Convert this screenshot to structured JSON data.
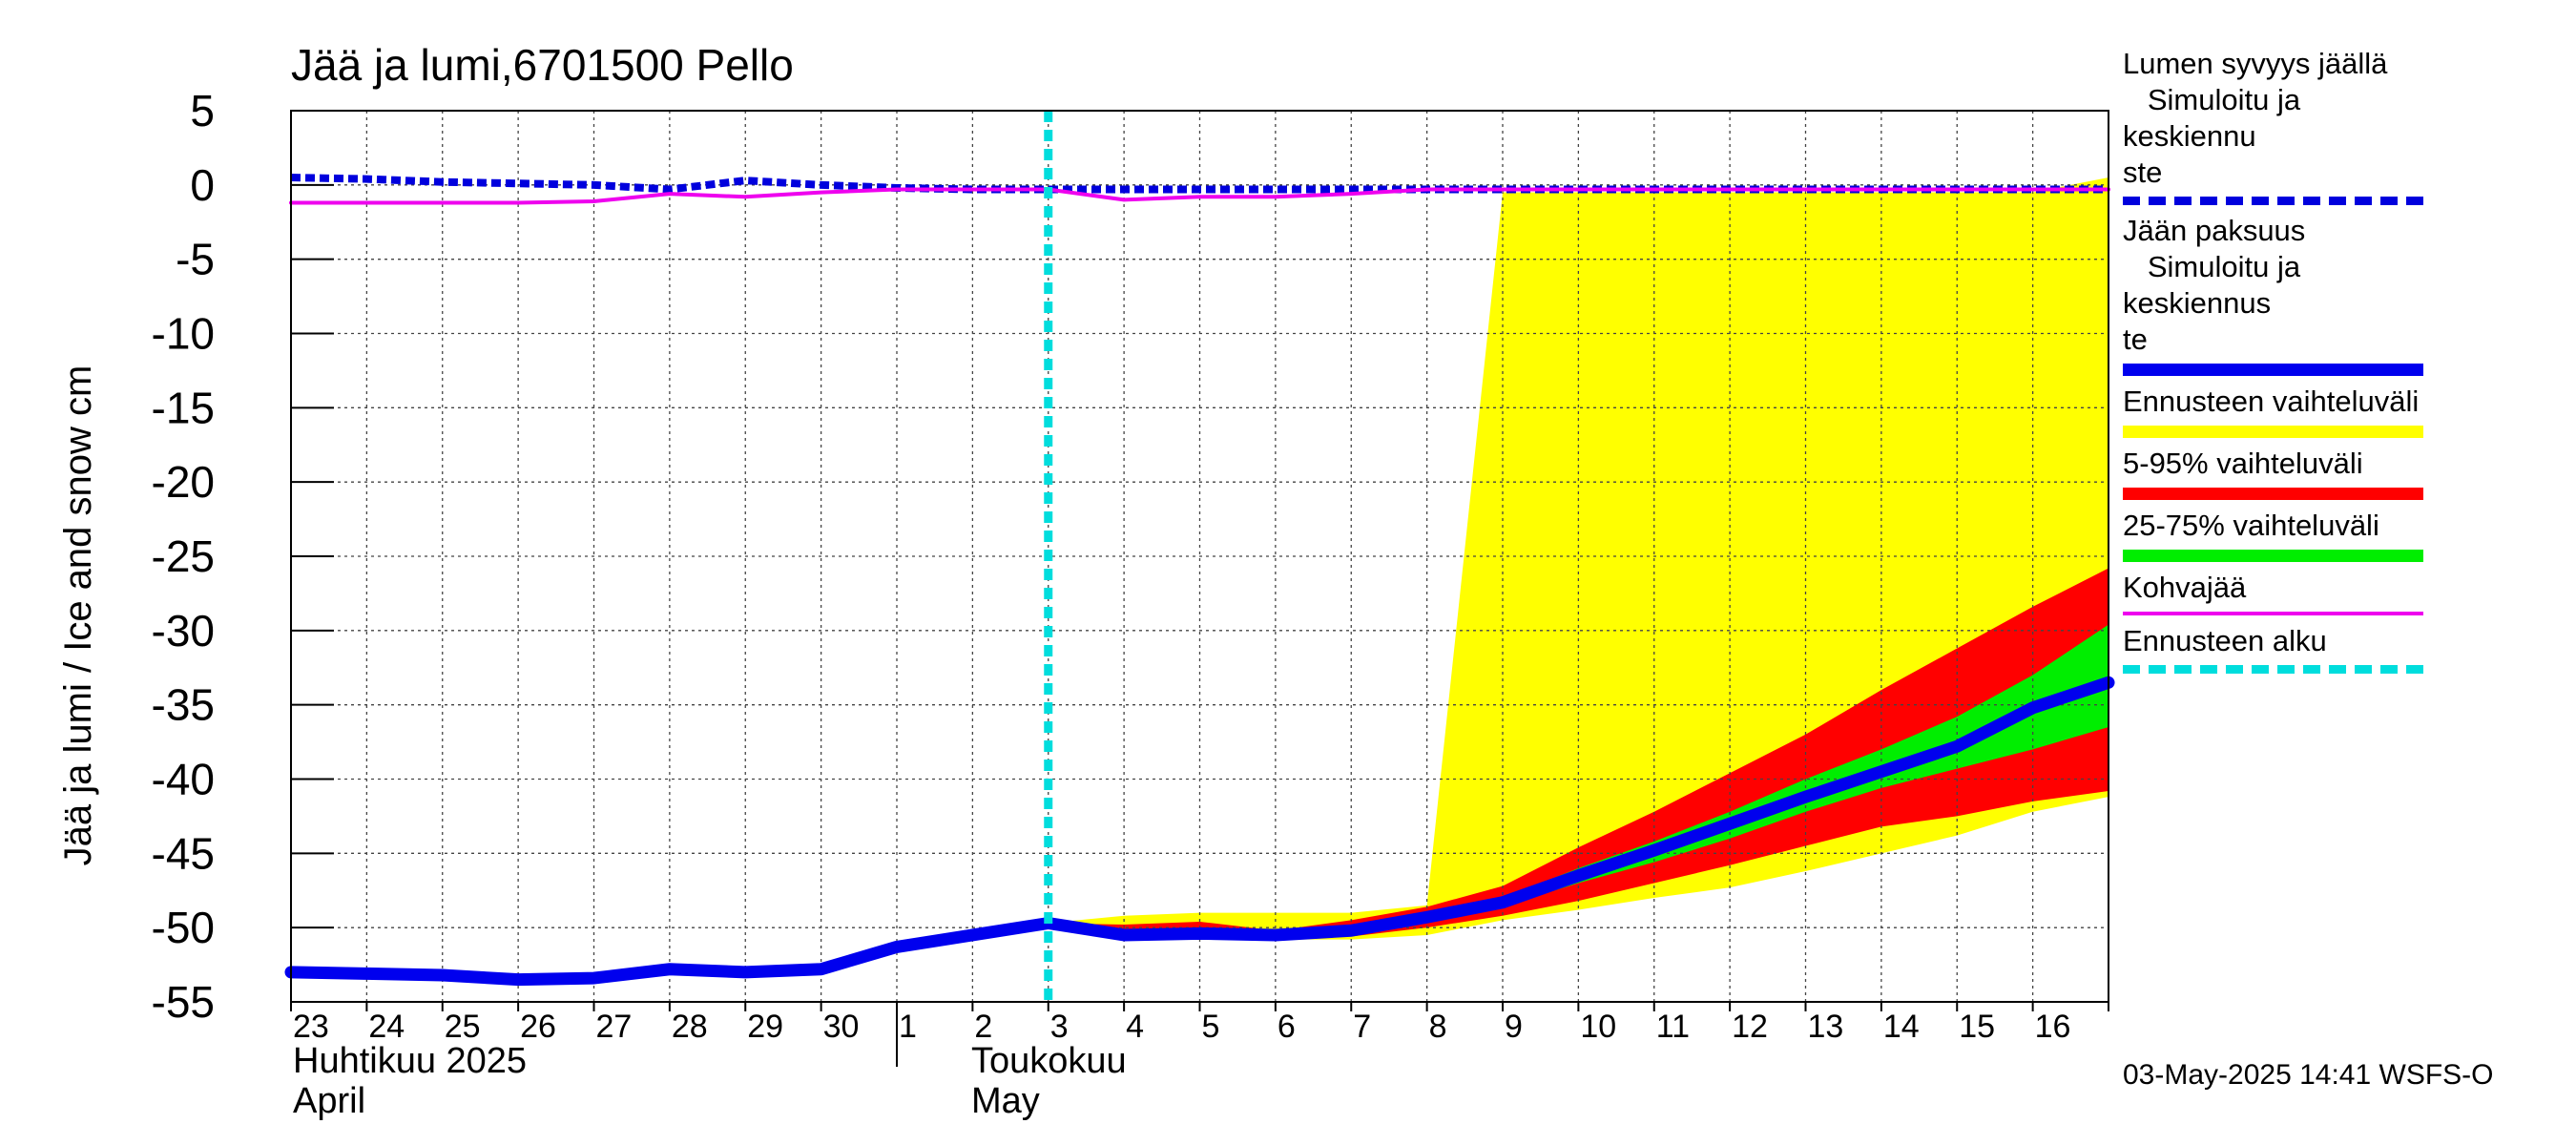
{
  "chart_data": {
    "type": "area",
    "title": "Jää ja lumi,6701500 Pello",
    "ylabel": "Jää ja lumi / Ice and snow    cm",
    "xlabel": "",
    "ylim": [
      -55,
      5
    ],
    "yticks": [
      5,
      0,
      -5,
      -10,
      -15,
      -20,
      -25,
      -30,
      -35,
      -40,
      -45,
      -50,
      -55
    ],
    "x_day_labels": [
      "23",
      "24",
      "25",
      "26",
      "27",
      "28",
      "29",
      "30",
      "1",
      "2",
      "3",
      "4",
      "5",
      "6",
      "7",
      "8",
      "9",
      "10",
      "11",
      "12",
      "13",
      "14",
      "15",
      "16"
    ],
    "month_labels": [
      {
        "fi": "Huhtikuu  2025",
        "en": "April"
      },
      {
        "fi": "Toukokuu",
        "en": "May"
      }
    ],
    "grid": true,
    "legend_position": "right",
    "forecast_start": "2025-05-03",
    "series": [
      {
        "name": "Lumen syvyys jäällä  Simuloitu ja keskiennuste",
        "style": "dashed",
        "color": "#0000dd",
        "points": [
          [
            "2025-04-23",
            0.5
          ],
          [
            "2025-04-24",
            0.4
          ],
          [
            "2025-04-25",
            0.2
          ],
          [
            "2025-04-26",
            0.1
          ],
          [
            "2025-04-27",
            0.0
          ],
          [
            "2025-04-28",
            -0.3
          ],
          [
            "2025-04-29",
            0.3
          ],
          [
            "2025-04-30",
            0.0
          ],
          [
            "2025-05-01",
            -0.2
          ],
          [
            "2025-05-02",
            -0.3
          ],
          [
            "2025-05-03",
            -0.3
          ],
          [
            "2025-05-04",
            -0.3
          ],
          [
            "2025-05-05",
            -0.3
          ],
          [
            "2025-05-06",
            -0.3
          ],
          [
            "2025-05-07",
            -0.3
          ],
          [
            "2025-05-08",
            -0.3
          ],
          [
            "2025-05-09",
            -0.3
          ],
          [
            "2025-05-10",
            -0.3
          ],
          [
            "2025-05-11",
            -0.3
          ],
          [
            "2025-05-12",
            -0.3
          ],
          [
            "2025-05-13",
            -0.3
          ],
          [
            "2025-05-14",
            -0.3
          ],
          [
            "2025-05-15",
            -0.3
          ],
          [
            "2025-05-16",
            -0.3
          ],
          [
            "2025-05-17",
            -0.3
          ]
        ]
      },
      {
        "name": "Jään paksuus  Simuloitu ja keskiennuste",
        "style": "solid",
        "color": "#0000ee",
        "points": [
          [
            "2025-04-23",
            -53
          ],
          [
            "2025-04-24",
            -53.1
          ],
          [
            "2025-04-25",
            -53.2
          ],
          [
            "2025-04-26",
            -53.5
          ],
          [
            "2025-04-27",
            -53.4
          ],
          [
            "2025-04-28",
            -52.8
          ],
          [
            "2025-04-29",
            -53.0
          ],
          [
            "2025-04-30",
            -52.8
          ],
          [
            "2025-05-01",
            -51.3
          ],
          [
            "2025-05-02",
            -50.5
          ],
          [
            "2025-05-03",
            -49.7
          ],
          [
            "2025-05-04",
            -50.5
          ],
          [
            "2025-05-05",
            -50.4
          ],
          [
            "2025-05-06",
            -50.5
          ],
          [
            "2025-05-07",
            -50.2
          ],
          [
            "2025-05-08",
            -49.3
          ],
          [
            "2025-05-09",
            -48.3
          ],
          [
            "2025-05-10",
            -46.5
          ],
          [
            "2025-05-11",
            -44.8
          ],
          [
            "2025-05-12",
            -43.0
          ],
          [
            "2025-05-13",
            -41.2
          ],
          [
            "2025-05-14",
            -39.5
          ],
          [
            "2025-05-15",
            -37.8
          ],
          [
            "2025-05-16",
            -35.2
          ],
          [
            "2025-05-17",
            -33.5
          ]
        ]
      },
      {
        "name": "Kohvajää",
        "style": "solid",
        "color": "#ee00ee",
        "points": [
          [
            "2025-04-23",
            -1.2
          ],
          [
            "2025-04-24",
            -1.2
          ],
          [
            "2025-04-25",
            -1.2
          ],
          [
            "2025-04-26",
            -1.2
          ],
          [
            "2025-04-27",
            -1.1
          ],
          [
            "2025-04-28",
            -0.6
          ],
          [
            "2025-04-29",
            -0.8
          ],
          [
            "2025-04-30",
            -0.5
          ],
          [
            "2025-05-01",
            -0.3
          ],
          [
            "2025-05-02",
            -0.3
          ],
          [
            "2025-05-03",
            -0.3
          ],
          [
            "2025-05-04",
            -1.0
          ],
          [
            "2025-05-05",
            -0.8
          ],
          [
            "2025-05-06",
            -0.8
          ],
          [
            "2025-05-07",
            -0.6
          ],
          [
            "2025-05-08",
            -0.3
          ],
          [
            "2025-05-09",
            -0.3
          ],
          [
            "2025-05-10",
            -0.3
          ],
          [
            "2025-05-11",
            -0.3
          ],
          [
            "2025-05-12",
            -0.3
          ],
          [
            "2025-05-13",
            -0.3
          ],
          [
            "2025-05-14",
            -0.3
          ],
          [
            "2025-05-15",
            -0.3
          ],
          [
            "2025-05-16",
            -0.3
          ],
          [
            "2025-05-17",
            -0.3
          ]
        ]
      }
    ],
    "bands": [
      {
        "name": "Ennusteen vaihteluväli",
        "color": "#ffff00",
        "upper": [
          [
            "2025-05-03",
            -49.7
          ],
          [
            "2025-05-04",
            -49.2
          ],
          [
            "2025-05-05",
            -49.0
          ],
          [
            "2025-05-06",
            -49.0
          ],
          [
            "2025-05-07",
            -49.0
          ],
          [
            "2025-05-08",
            -48.5
          ],
          [
            "2025-05-09",
            -0.5
          ],
          [
            "2025-05-10",
            -0.5
          ],
          [
            "2025-05-11",
            -0.5
          ],
          [
            "2025-05-12",
            -0.5
          ],
          [
            "2025-05-13",
            -0.5
          ],
          [
            "2025-05-14",
            -0.5
          ],
          [
            "2025-05-15",
            -0.5
          ],
          [
            "2025-05-16",
            -0.5
          ],
          [
            "2025-05-17",
            0.5
          ]
        ],
        "lower": [
          [
            "2025-05-03",
            -49.7
          ],
          [
            "2025-05-04",
            -50.8
          ],
          [
            "2025-05-05",
            -50.8
          ],
          [
            "2025-05-06",
            -50.8
          ],
          [
            "2025-05-07",
            -50.8
          ],
          [
            "2025-05-08",
            -50.5
          ],
          [
            "2025-05-09",
            -49.5
          ],
          [
            "2025-05-10",
            -48.8
          ],
          [
            "2025-05-11",
            -48.0
          ],
          [
            "2025-05-12",
            -47.3
          ],
          [
            "2025-05-13",
            -46.2
          ],
          [
            "2025-05-14",
            -45.0
          ],
          [
            "2025-05-15",
            -43.8
          ],
          [
            "2025-05-16",
            -42.2
          ],
          [
            "2025-05-17",
            -41.2
          ]
        ]
      },
      {
        "name": "5-95% vaihteluväli",
        "color": "#ff0000",
        "upper": [
          [
            "2025-05-03",
            -49.7
          ],
          [
            "2025-05-04",
            -49.8
          ],
          [
            "2025-05-05",
            -49.6
          ],
          [
            "2025-05-06",
            -50.2
          ],
          [
            "2025-05-07",
            -49.5
          ],
          [
            "2025-05-08",
            -48.6
          ],
          [
            "2025-05-09",
            -47.2
          ],
          [
            "2025-05-10",
            -44.6
          ],
          [
            "2025-05-11",
            -42.2
          ],
          [
            "2025-05-12",
            -39.6
          ],
          [
            "2025-05-13",
            -37.0
          ],
          [
            "2025-05-14",
            -34.0
          ],
          [
            "2025-05-15",
            -31.2
          ],
          [
            "2025-05-16",
            -28.4
          ],
          [
            "2025-05-17",
            -25.8
          ]
        ],
        "lower": [
          [
            "2025-05-03",
            -49.7
          ],
          [
            "2025-05-04",
            -50.6
          ],
          [
            "2025-05-05",
            -50.6
          ],
          [
            "2025-05-06",
            -50.6
          ],
          [
            "2025-05-07",
            -50.6
          ],
          [
            "2025-05-08",
            -50.0
          ],
          [
            "2025-05-09",
            -49.2
          ],
          [
            "2025-05-10",
            -48.2
          ],
          [
            "2025-05-11",
            -47.0
          ],
          [
            "2025-05-12",
            -45.8
          ],
          [
            "2025-05-13",
            -44.5
          ],
          [
            "2025-05-14",
            -43.2
          ],
          [
            "2025-05-15",
            -42.5
          ],
          [
            "2025-05-16",
            -41.5
          ],
          [
            "2025-05-17",
            -40.8
          ]
        ]
      },
      {
        "name": "25-75% vaihteluväli",
        "color": "#00ee00",
        "upper": [
          [
            "2025-05-08",
            -49.1
          ],
          [
            "2025-05-09",
            -48.0
          ],
          [
            "2025-05-10",
            -46.0
          ],
          [
            "2025-05-11",
            -44.2
          ],
          [
            "2025-05-12",
            -42.2
          ],
          [
            "2025-05-13",
            -40.0
          ],
          [
            "2025-05-14",
            -38.0
          ],
          [
            "2025-05-15",
            -35.8
          ],
          [
            "2025-05-16",
            -33.0
          ],
          [
            "2025-05-17",
            -29.6
          ]
        ],
        "lower": [
          [
            "2025-05-08",
            -49.5
          ],
          [
            "2025-05-09",
            -48.6
          ],
          [
            "2025-05-10",
            -47.0
          ],
          [
            "2025-05-11",
            -45.6
          ],
          [
            "2025-05-12",
            -44.0
          ],
          [
            "2025-05-13",
            -42.2
          ],
          [
            "2025-05-14",
            -40.6
          ],
          [
            "2025-05-15",
            -39.3
          ],
          [
            "2025-05-16",
            -38.0
          ],
          [
            "2025-05-17",
            -36.5
          ]
        ]
      }
    ],
    "legend": [
      {
        "label": "Lumen syvyys jäällä\n   Simuloitu ja keskiennu\nste",
        "color": "#0000dd",
        "style": "dashed"
      },
      {
        "label": "Jään paksuus\n   Simuloitu ja keskiennus\nte",
        "color": "#0000ee",
        "style": "solid"
      },
      {
        "label": "Ennusteen vaihteluväli",
        "color": "#ffff00",
        "style": "solid"
      },
      {
        "label": "5-95% vaihteluväli",
        "color": "#ff0000",
        "style": "solid"
      },
      {
        "label": "25-75% vaihteluväli",
        "color": "#00ee00",
        "style": "solid"
      },
      {
        "label": "Kohvajää",
        "color": "#ee00ee",
        "style": "solid"
      },
      {
        "label": "Ennusteen alku",
        "color": "#00dddd",
        "style": "dashed"
      }
    ],
    "footer": "03-May-2025 14:41 WSFS-O"
  }
}
